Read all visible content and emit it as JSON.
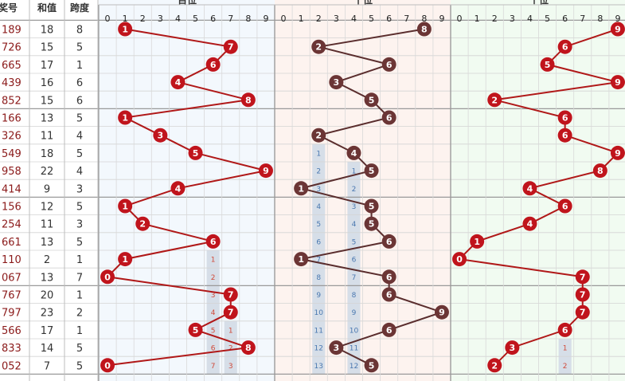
{
  "header": {
    "col_a": "奖号",
    "col_b": "和值",
    "col_c": "跨度",
    "panels": [
      "百位",
      "十位",
      "个位"
    ]
  },
  "digits": [
    "0",
    "1",
    "2",
    "3",
    "4",
    "5",
    "6",
    "7",
    "8",
    "9"
  ],
  "colors": {
    "red_ball": "#c0141c",
    "brown_ball": "#6b3535",
    "red_line": "#b01818",
    "brown_line": "#5a2d2d",
    "miss_bar": "#d6dee8",
    "miss_text_red": "#d04a3a",
    "miss_text_blue": "#4a78b0"
  },
  "chart_data": {
    "type": "table",
    "rows": [
      {
        "num": "189",
        "sum": "18",
        "span": "8",
        "b": 1,
        "s": 8,
        "g": 9
      },
      {
        "num": "726",
        "sum": "15",
        "span": "5",
        "b": 7,
        "s": 2,
        "g": 6
      },
      {
        "num": "665",
        "sum": "17",
        "span": "1",
        "b": 6,
        "s": 6,
        "g": 5
      },
      {
        "num": "439",
        "sum": "16",
        "span": "6",
        "b": 4,
        "s": 3,
        "g": 9
      },
      {
        "num": "852",
        "sum": "15",
        "span": "6",
        "b": 8,
        "s": 5,
        "g": 2
      },
      {
        "num": "166",
        "sum": "13",
        "span": "5",
        "b": 1,
        "s": 6,
        "g": 6
      },
      {
        "num": "326",
        "sum": "11",
        "span": "4",
        "b": 3,
        "s": 2,
        "g": 6
      },
      {
        "num": "549",
        "sum": "18",
        "span": "5",
        "b": 5,
        "s": 4,
        "g": 9
      },
      {
        "num": "958",
        "sum": "22",
        "span": "4",
        "b": 9,
        "s": 5,
        "g": 8
      },
      {
        "num": "414",
        "sum": "9",
        "span": "3",
        "b": 4,
        "s": 1,
        "g": 4
      },
      {
        "num": "156",
        "sum": "12",
        "span": "5",
        "b": 1,
        "s": 5,
        "g": 6
      },
      {
        "num": "254",
        "sum": "11",
        "span": "3",
        "b": 2,
        "s": 5,
        "g": 4
      },
      {
        "num": "661",
        "sum": "13",
        "span": "5",
        "b": 6,
        "s": 6,
        "g": 1
      },
      {
        "num": "110",
        "sum": "2",
        "span": "1",
        "b": 1,
        "s": 1,
        "g": 0
      },
      {
        "num": "067",
        "sum": "13",
        "span": "7",
        "b": 0,
        "s": 6,
        "g": 7
      },
      {
        "num": "767",
        "sum": "20",
        "span": "1",
        "b": 7,
        "s": 6,
        "g": 7
      },
      {
        "num": "797",
        "sum": "23",
        "span": "2",
        "b": 7,
        "s": 9,
        "g": 7
      },
      {
        "num": "566",
        "sum": "17",
        "span": "1",
        "b": 5,
        "s": 6,
        "g": 6
      },
      {
        "num": "833",
        "sum": "14",
        "span": "5",
        "b": 8,
        "s": 3,
        "g": 3
      },
      {
        "num": "052",
        "sum": "7",
        "span": "5",
        "b": 0,
        "s": 5,
        "g": 2
      }
    ],
    "miss_marks": [
      {
        "panel": 0,
        "col": 6,
        "row": 13,
        "text": "1"
      },
      {
        "panel": 0,
        "col": 6,
        "row": 14,
        "text": "2"
      },
      {
        "panel": 0,
        "col": 6,
        "row": 15,
        "text": "3"
      },
      {
        "panel": 0,
        "col": 6,
        "row": 16,
        "text": "4"
      },
      {
        "panel": 0,
        "col": 6,
        "row": 17,
        "text": "5"
      },
      {
        "panel": 0,
        "col": 6,
        "row": 18,
        "text": "6"
      },
      {
        "panel": 0,
        "col": 6,
        "row": 19,
        "text": "7"
      },
      {
        "panel": 0,
        "col": 7,
        "row": 17,
        "text": "1"
      },
      {
        "panel": 0,
        "col": 7,
        "row": 18,
        "text": "2"
      },
      {
        "panel": 0,
        "col": 7,
        "row": 19,
        "text": "3"
      },
      {
        "panel": 1,
        "col": 2,
        "row": 7,
        "text": "1"
      },
      {
        "panel": 1,
        "col": 2,
        "row": 8,
        "text": "2"
      },
      {
        "panel": 1,
        "col": 2,
        "row": 9,
        "text": "3"
      },
      {
        "panel": 1,
        "col": 2,
        "row": 10,
        "text": "4"
      },
      {
        "panel": 1,
        "col": 2,
        "row": 11,
        "text": "5"
      },
      {
        "panel": 1,
        "col": 2,
        "row": 12,
        "text": "6"
      },
      {
        "panel": 1,
        "col": 2,
        "row": 13,
        "text": "7"
      },
      {
        "panel": 1,
        "col": 2,
        "row": 14,
        "text": "8"
      },
      {
        "panel": 1,
        "col": 2,
        "row": 15,
        "text": "9"
      },
      {
        "panel": 1,
        "col": 2,
        "row": 16,
        "text": "10"
      },
      {
        "panel": 1,
        "col": 2,
        "row": 17,
        "text": "11"
      },
      {
        "panel": 1,
        "col": 2,
        "row": 18,
        "text": "12"
      },
      {
        "panel": 1,
        "col": 2,
        "row": 19,
        "text": "13"
      },
      {
        "panel": 1,
        "col": 4,
        "row": 8,
        "text": "1"
      },
      {
        "panel": 1,
        "col": 4,
        "row": 9,
        "text": "2"
      },
      {
        "panel": 1,
        "col": 4,
        "row": 10,
        "text": "3"
      },
      {
        "panel": 1,
        "col": 4,
        "row": 11,
        "text": "4"
      },
      {
        "panel": 1,
        "col": 4,
        "row": 12,
        "text": "5"
      },
      {
        "panel": 1,
        "col": 4,
        "row": 13,
        "text": "6"
      },
      {
        "panel": 1,
        "col": 4,
        "row": 14,
        "text": "7"
      },
      {
        "panel": 1,
        "col": 4,
        "row": 15,
        "text": "8"
      },
      {
        "panel": 1,
        "col": 4,
        "row": 16,
        "text": "9"
      },
      {
        "panel": 1,
        "col": 4,
        "row": 17,
        "text": "10"
      },
      {
        "panel": 1,
        "col": 4,
        "row": 18,
        "text": "11"
      },
      {
        "panel": 1,
        "col": 4,
        "row": 19,
        "text": "12"
      },
      {
        "panel": 2,
        "col": 6,
        "row": 18,
        "text": "1"
      },
      {
        "panel": 2,
        "col": 6,
        "row": 19,
        "text": "2"
      }
    ]
  }
}
